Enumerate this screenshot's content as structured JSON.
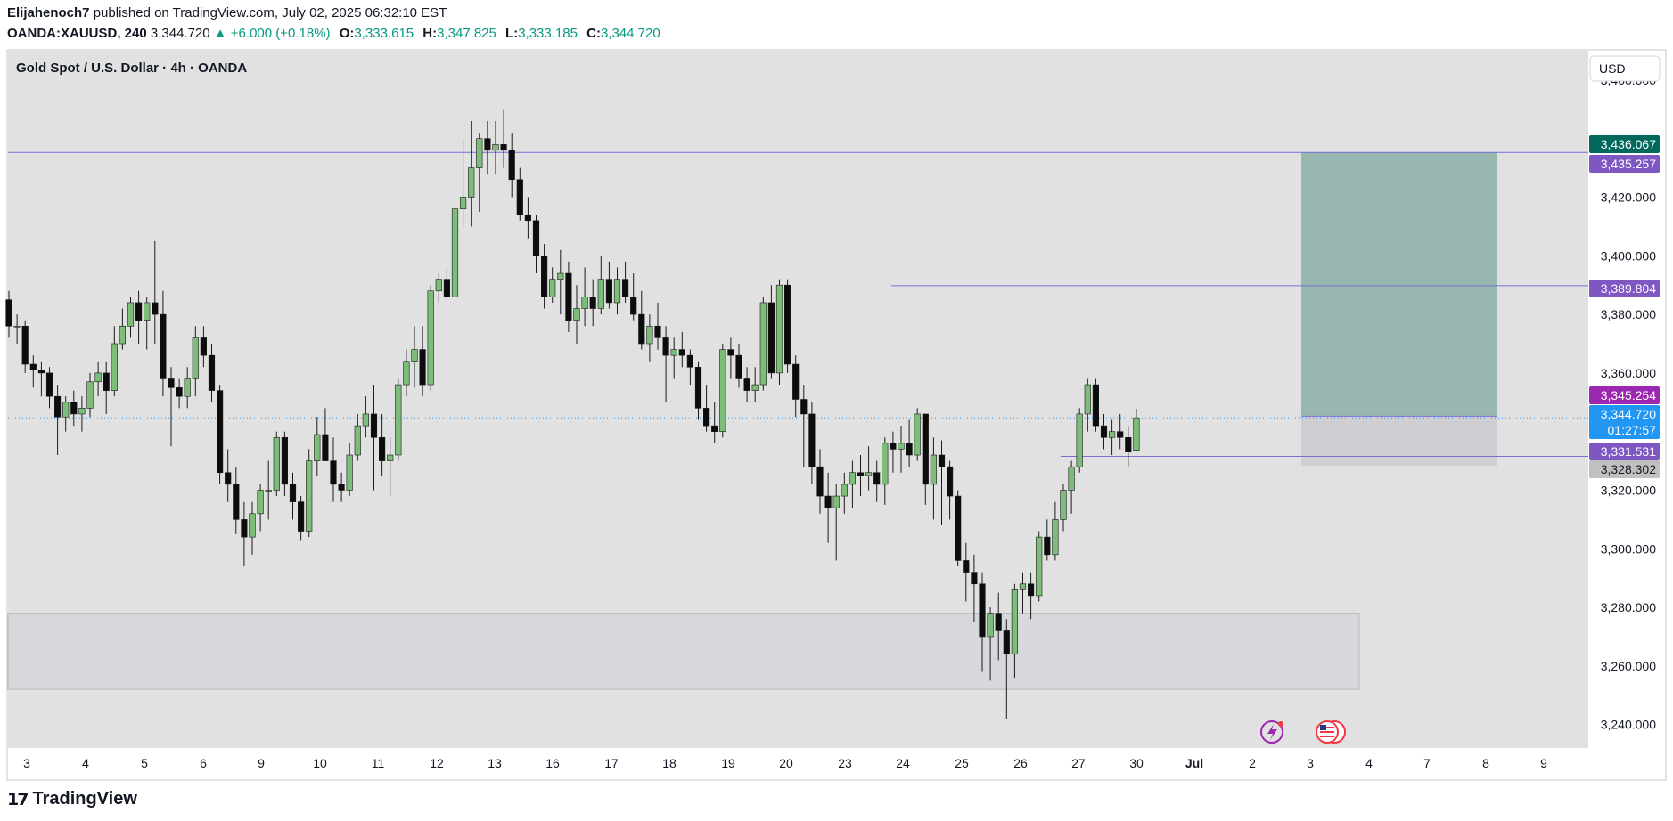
{
  "header": {
    "publisher_user": "Elijahenoch7",
    "publisher_text": "published on TradingView.com, July 02, 2025 06:32:10 EST",
    "symbol": "OANDA:XAUUSD, 240",
    "last": "3,344.720",
    "change": "▲ +6.000 (+0.18%)",
    "o_label": "O:",
    "o_value": "3,333.615",
    "h_label": "H:",
    "h_value": "3,347.825",
    "l_label": "L:",
    "l_value": "3,333.185",
    "c_label": "C:",
    "c_value": "3,344.720"
  },
  "legend_title": "Gold Spot / U.S. Dollar · 4h · OANDA",
  "currency_button": "USD",
  "footer_brand": "TradingView",
  "colors": {
    "chart_bg": "#e1e1e1",
    "bull": "#7dbd7a",
    "bear": "#0c0c0c",
    "target_zone": "#98b7b1",
    "stop_zone": "#cdcfd3",
    "demand_zone": "#d7d8dc",
    "level_line": "#7b6fd6",
    "label_purple": "#7e57c2",
    "label_magenta": "#9c27b0",
    "label_teal": "#00695c",
    "label_blue": "#2196f3",
    "label_gray": "#c0c0c0"
  },
  "chart_data": {
    "type": "candlestick",
    "y_ticks": [
      "3,460.000",
      "3,420.000",
      "3,400.000",
      "3,380.000",
      "3,360.000",
      "3,320.000",
      "3,300.000",
      "3,280.000",
      "3,260.000",
      "3,240.000"
    ],
    "y_tick_values": [
      3460,
      3420,
      3400,
      3380,
      3360,
      3320,
      3300,
      3280,
      3260,
      3240
    ],
    "ylim": [
      3232,
      3470
    ],
    "x_ticks": [
      "3",
      "4",
      "5",
      "6",
      "9",
      "10",
      "11",
      "12",
      "13",
      "16",
      "17",
      "18",
      "19",
      "20",
      "23",
      "24",
      "25",
      "26",
      "27",
      "30",
      "Jul",
      "2",
      "3",
      "4",
      "7",
      "8",
      "9"
    ],
    "price_labels": [
      {
        "text": "3,436.067",
        "value": 3436.067,
        "color": "#00695c"
      },
      {
        "text": "3,435.257",
        "value": 3435.257,
        "color": "#7e57c2"
      },
      {
        "text": "3,389.804",
        "value": 3389.804,
        "color": "#7e57c2"
      },
      {
        "text": "3,345.254",
        "value": 3345.254,
        "color": "#9c27b0"
      },
      {
        "text": "3,344.720",
        "value": 3344.72,
        "color": "#2196f3",
        "sub": "01:27:57"
      },
      {
        "text": "3,331.531",
        "value": 3331.531,
        "color": "#7e57c2"
      },
      {
        "text": "3,328.302",
        "value": 3328.302,
        "color": "#c0c0c0"
      }
    ],
    "levels": [
      3435.257,
      3389.804,
      3331.531
    ],
    "current_price": 3344.72,
    "position": {
      "entry": 3345.254,
      "target": 3435.257,
      "stop": 3328.302
    },
    "demand_zone": [
      3252,
      3278
    ],
    "candles": [
      [
        3385,
        3388,
        3372,
        3376
      ],
      [
        3376,
        3380,
        3370,
        3376
      ],
      [
        3376,
        3378,
        3360,
        3363
      ],
      [
        3363,
        3366,
        3355,
        3361
      ],
      [
        3361,
        3364,
        3352,
        3360
      ],
      [
        3360,
        3362,
        3348,
        3352
      ],
      [
        3352,
        3356,
        3332,
        3345
      ],
      [
        3345,
        3352,
        3340,
        3350
      ],
      [
        3350,
        3354,
        3342,
        3346
      ],
      [
        3346,
        3352,
        3340,
        3348
      ],
      [
        3348,
        3360,
        3345,
        3357
      ],
      [
        3357,
        3364,
        3352,
        3360
      ],
      [
        3360,
        3364,
        3346,
        3354
      ],
      [
        3354,
        3376,
        3352,
        3370
      ],
      [
        3370,
        3382,
        3368,
        3376
      ],
      [
        3376,
        3386,
        3372,
        3384
      ],
      [
        3384,
        3388,
        3370,
        3378
      ],
      [
        3378,
        3386,
        3368,
        3384
      ],
      [
        3384,
        3405,
        3370,
        3380
      ],
      [
        3380,
        3388,
        3352,
        3358
      ],
      [
        3358,
        3362,
        3335,
        3355
      ],
      [
        3355,
        3358,
        3348,
        3352
      ],
      [
        3352,
        3362,
        3348,
        3358
      ],
      [
        3358,
        3376,
        3352,
        3372
      ],
      [
        3372,
        3376,
        3362,
        3366
      ],
      [
        3366,
        3370,
        3350,
        3354
      ],
      [
        3354,
        3356,
        3322,
        3326
      ],
      [
        3326,
        3334,
        3316,
        3322
      ],
      [
        3322,
        3328,
        3305,
        3310
      ],
      [
        3310,
        3316,
        3294,
        3304
      ],
      [
        3304,
        3316,
        3298,
        3312
      ],
      [
        3312,
        3322,
        3306,
        3320
      ],
      [
        3320,
        3330,
        3310,
        3320
      ],
      [
        3320,
        3340,
        3318,
        3338
      ],
      [
        3338,
        3340,
        3318,
        3322
      ],
      [
        3322,
        3326,
        3310,
        3316
      ],
      [
        3316,
        3318,
        3303,
        3306
      ],
      [
        3306,
        3334,
        3304,
        3330
      ],
      [
        3330,
        3345,
        3325,
        3339
      ],
      [
        3339,
        3348,
        3330,
        3330
      ],
      [
        3330,
        3338,
        3316,
        3322
      ],
      [
        3322,
        3326,
        3316,
        3320
      ],
      [
        3320,
        3336,
        3318,
        3332
      ],
      [
        3332,
        3346,
        3330,
        3342
      ],
      [
        3342,
        3352,
        3338,
        3346
      ],
      [
        3346,
        3356,
        3320,
        3338
      ],
      [
        3338,
        3346,
        3325,
        3330
      ],
      [
        3330,
        3338,
        3318,
        3332
      ],
      [
        3332,
        3358,
        3330,
        3356
      ],
      [
        3356,
        3368,
        3352,
        3364
      ],
      [
        3364,
        3376,
        3355,
        3368
      ],
      [
        3368,
        3376,
        3352,
        3356
      ],
      [
        3356,
        3390,
        3354,
        3388
      ],
      [
        3388,
        3394,
        3384,
        3392
      ],
      [
        3392,
        3396,
        3385,
        3386
      ],
      [
        3386,
        3420,
        3384,
        3416
      ],
      [
        3416,
        3440,
        3410,
        3420
      ],
      [
        3420,
        3446,
        3410,
        3430
      ],
      [
        3430,
        3442,
        3415,
        3440
      ],
      [
        3440,
        3446,
        3428,
        3436
      ],
      [
        3436,
        3446,
        3428,
        3438
      ],
      [
        3438,
        3450,
        3430,
        3436
      ],
      [
        3436,
        3442,
        3420,
        3426
      ],
      [
        3426,
        3430,
        3412,
        3414
      ],
      [
        3414,
        3420,
        3406,
        3412
      ],
      [
        3412,
        3414,
        3394,
        3400
      ],
      [
        3400,
        3404,
        3382,
        3386
      ],
      [
        3386,
        3396,
        3384,
        3392
      ],
      [
        3392,
        3402,
        3380,
        3394
      ],
      [
        3394,
        3398,
        3374,
        3378
      ],
      [
        3378,
        3390,
        3370,
        3382
      ],
      [
        3382,
        3396,
        3376,
        3386
      ],
      [
        3386,
        3392,
        3376,
        3382
      ],
      [
        3382,
        3400,
        3380,
        3392
      ],
      [
        3392,
        3398,
        3382,
        3384
      ],
      [
        3384,
        3396,
        3380,
        3392
      ],
      [
        3392,
        3398,
        3384,
        3386
      ],
      [
        3386,
        3394,
        3378,
        3380
      ],
      [
        3380,
        3388,
        3368,
        3370
      ],
      [
        3370,
        3380,
        3364,
        3376
      ],
      [
        3376,
        3384,
        3368,
        3372
      ],
      [
        3372,
        3376,
        3350,
        3366
      ],
      [
        3366,
        3372,
        3358,
        3368
      ],
      [
        3368,
        3374,
        3362,
        3366
      ],
      [
        3366,
        3368,
        3356,
        3362
      ],
      [
        3362,
        3364,
        3344,
        3348
      ],
      [
        3348,
        3356,
        3340,
        3342
      ],
      [
        3342,
        3350,
        3336,
        3340
      ],
      [
        3340,
        3370,
        3338,
        3368
      ],
      [
        3368,
        3372,
        3358,
        3366
      ],
      [
        3366,
        3370,
        3355,
        3358
      ],
      [
        3358,
        3362,
        3350,
        3354
      ],
      [
        3354,
        3362,
        3350,
        3356
      ],
      [
        3356,
        3386,
        3354,
        3384
      ],
      [
        3384,
        3390,
        3358,
        3360
      ],
      [
        3360,
        3392,
        3356,
        3390
      ],
      [
        3390,
        3392,
        3360,
        3363
      ],
      [
        3363,
        3366,
        3345,
        3351
      ],
      [
        3351,
        3356,
        3328,
        3346
      ],
      [
        3346,
        3350,
        3322,
        3328
      ],
      [
        3328,
        3334,
        3312,
        3318
      ],
      [
        3318,
        3326,
        3302,
        3314
      ],
      [
        3314,
        3322,
        3296,
        3318
      ],
      [
        3318,
        3326,
        3312,
        3322
      ],
      [
        3322,
        3330,
        3314,
        3326
      ],
      [
        3326,
        3332,
        3318,
        3325
      ],
      [
        3325,
        3335,
        3320,
        3326
      ],
      [
        3326,
        3330,
        3316,
        3322
      ],
      [
        3322,
        3338,
        3315,
        3336
      ],
      [
        3336,
        3340,
        3326,
        3334
      ],
      [
        3334,
        3342,
        3326,
        3336
      ],
      [
        3336,
        3344,
        3328,
        3332
      ],
      [
        3332,
        3348,
        3330,
        3346
      ],
      [
        3346,
        3346,
        3315,
        3322
      ],
      [
        3322,
        3338,
        3310,
        3332
      ],
      [
        3332,
        3337,
        3308,
        3328
      ],
      [
        3328,
        3330,
        3310,
        3318
      ],
      [
        3318,
        3320,
        3294,
        3296
      ],
      [
        3296,
        3302,
        3282,
        3292
      ],
      [
        3292,
        3298,
        3275,
        3288
      ],
      [
        3288,
        3292,
        3258,
        3270
      ],
      [
        3270,
        3280,
        3255,
        3278
      ],
      [
        3278,
        3285,
        3262,
        3272
      ],
      [
        3272,
        3276,
        3242,
        3264
      ],
      [
        3264,
        3288,
        3256,
        3286
      ],
      [
        3286,
        3292,
        3278,
        3288
      ],
      [
        3288,
        3292,
        3276,
        3284
      ],
      [
        3284,
        3306,
        3282,
        3304
      ],
      [
        3304,
        3310,
        3296,
        3298
      ],
      [
        3298,
        3316,
        3296,
        3310
      ],
      [
        3310,
        3322,
        3306,
        3320
      ],
      [
        3320,
        3330,
        3312,
        3328
      ],
      [
        3328,
        3348,
        3326,
        3346
      ],
      [
        3346,
        3358,
        3340,
        3356
      ],
      [
        3356,
        3358,
        3340,
        3342
      ],
      [
        3342,
        3346,
        3334,
        3338
      ],
      [
        3338,
        3344,
        3332,
        3340
      ],
      [
        3340,
        3346,
        3334,
        3338
      ],
      [
        3338,
        3342,
        3328,
        3333
      ],
      [
        3333.615,
        3347.825,
        3333.185,
        3344.72
      ]
    ]
  }
}
